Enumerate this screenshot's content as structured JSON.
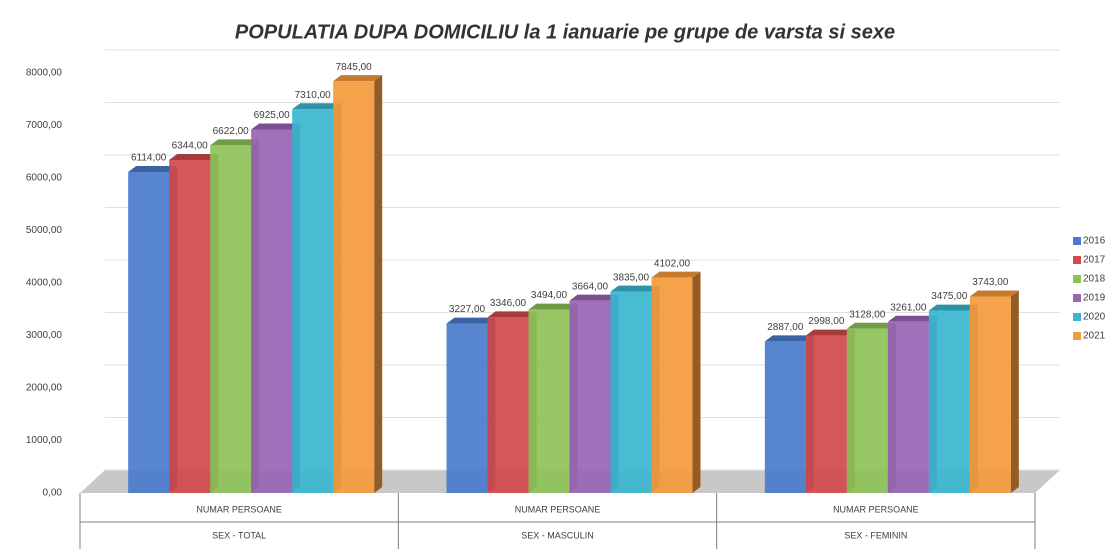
{
  "chart_data": {
    "type": "bar3d",
    "title": "POPULATIA DUPA DOMICILIU la 1 ianuarie pe grupe de varsta si sexe",
    "categories": [
      [
        "NUMAR PERSOANE",
        "SEX - TOTAL"
      ],
      [
        "NUMAR PERSOANE",
        "SEX - MASCULIN"
      ],
      [
        "NUMAR PERSOANE",
        "SEX - FEMININ"
      ]
    ],
    "series": [
      {
        "name": "2016",
        "color": "#4a7bcc",
        "values": [
          6114,
          3227,
          2887
        ],
        "value_labels": [
          "6114,00",
          "3227,00",
          "2887,00"
        ]
      },
      {
        "name": "2017",
        "color": "#d0494c",
        "values": [
          6344,
          3346,
          2998
        ],
        "value_labels": [
          "6344,00",
          "3346,00",
          "2998,00"
        ]
      },
      {
        "name": "2018",
        "color": "#8dc257",
        "values": [
          6622,
          3494,
          3128
        ],
        "value_labels": [
          "6622,00",
          "3494,00",
          "3128,00"
        ]
      },
      {
        "name": "2019",
        "color": "#9964b4",
        "values": [
          6925,
          3664,
          3261
        ],
        "value_labels": [
          "6925,00",
          "3664,00",
          "3261,00"
        ]
      },
      {
        "name": "2020",
        "color": "#3ab6d0",
        "values": [
          7310,
          3835,
          3475
        ],
        "value_labels": [
          "7310,00",
          "3835,00",
          "3475,00"
        ]
      },
      {
        "name": "2021",
        "color": "#f59a3c",
        "values": [
          7845,
          4102,
          3743
        ],
        "value_labels": [
          "7845,00",
          "4102,00",
          "3743,00"
        ]
      }
    ],
    "ylim": [
      0,
      8000
    ],
    "yticks": [
      {
        "value": 0,
        "label": "0,00"
      },
      {
        "value": 1000,
        "label": "1000,00"
      },
      {
        "value": 2000,
        "label": "2000,00"
      },
      {
        "value": 3000,
        "label": "3000,00"
      },
      {
        "value": 4000,
        "label": "4000,00"
      },
      {
        "value": 5000,
        "label": "5000,00"
      },
      {
        "value": 6000,
        "label": "6000,00"
      },
      {
        "value": 7000,
        "label": "7000,00"
      },
      {
        "value": 8000,
        "label": "8000,00"
      }
    ],
    "grid": true,
    "legend": "right"
  }
}
